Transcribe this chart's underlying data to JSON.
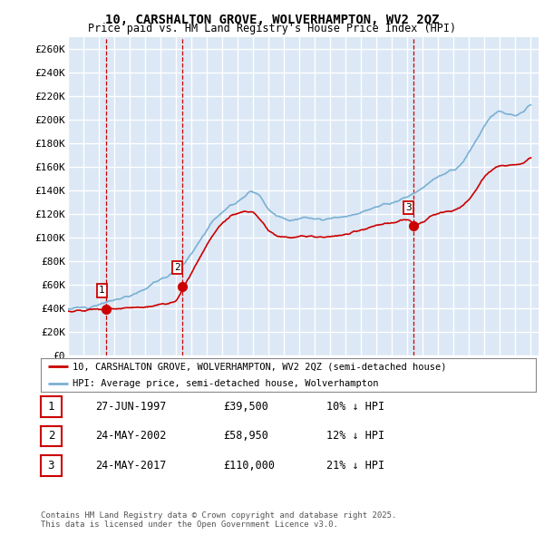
{
  "title": "10, CARSHALTON GROVE, WOLVERHAMPTON, WV2 2QZ",
  "subtitle": "Price paid vs. HM Land Registry's House Price Index (HPI)",
  "ylim": [
    0,
    270000
  ],
  "yticks": [
    0,
    20000,
    40000,
    60000,
    80000,
    100000,
    120000,
    140000,
    160000,
    180000,
    200000,
    220000,
    240000,
    260000
  ],
  "ytick_labels": [
    "£0",
    "£20K",
    "£40K",
    "£60K",
    "£80K",
    "£100K",
    "£120K",
    "£140K",
    "£160K",
    "£180K",
    "£200K",
    "£220K",
    "£240K",
    "£260K"
  ],
  "background_color": "#dce8f5",
  "grid_color": "#ffffff",
  "purchases": [
    {
      "date": 1997.49,
      "price": 39500,
      "label": "1"
    },
    {
      "date": 2002.39,
      "price": 58950,
      "label": "2"
    },
    {
      "date": 2017.39,
      "price": 110000,
      "label": "3"
    }
  ],
  "purchase_vline_color": "#cc0000",
  "purchase_marker_color": "#cc0000",
  "hpi_line_color": "#7ab0d4",
  "price_line_color": "#cc0000",
  "legend_entry1": "10, CARSHALTON GROVE, WOLVERHAMPTON, WV2 2QZ (semi-detached house)",
  "legend_entry2": "HPI: Average price, semi-detached house, Wolverhampton",
  "table_rows": [
    [
      "1",
      "27-JUN-1997",
      "£39,500",
      "10% ↓ HPI"
    ],
    [
      "2",
      "24-MAY-2002",
      "£58,950",
      "12% ↓ HPI"
    ],
    [
      "3",
      "24-MAY-2017",
      "£110,000",
      "21% ↓ HPI"
    ]
  ],
  "footer": "Contains HM Land Registry data © Crown copyright and database right 2025.\nThis data is licensed under the Open Government Licence v3.0.",
  "hpi_anchors_x": [
    1995,
    1995.5,
    1996,
    1996.5,
    1997,
    1997.5,
    1998,
    1998.5,
    1999,
    1999.5,
    2000,
    2000.5,
    2001,
    2001.5,
    2002,
    2002.5,
    2003,
    2003.5,
    2004,
    2004.5,
    2005,
    2005.5,
    2006,
    2006.5,
    2007,
    2007.25,
    2007.5,
    2007.75,
    2008,
    2008.5,
    2009,
    2009.5,
    2010,
    2010.5,
    2011,
    2011.5,
    2012,
    2012.5,
    2013,
    2013.5,
    2014,
    2014.5,
    2015,
    2015.5,
    2016,
    2016.5,
    2017,
    2017.5,
    2018,
    2018.5,
    2019,
    2019.5,
    2020,
    2020.5,
    2021,
    2021.5,
    2022,
    2022.5,
    2023,
    2023.5,
    2024,
    2024.5,
    2025
  ],
  "hpi_anchors_y": [
    40000,
    40500,
    41000,
    42000,
    43500,
    45500,
    47000,
    49000,
    51000,
    54000,
    57000,
    61000,
    65000,
    68000,
    72000,
    78000,
    87000,
    97000,
    107000,
    117000,
    122000,
    127000,
    131000,
    136000,
    140000,
    138000,
    135000,
    130000,
    124000,
    119000,
    116000,
    115000,
    116000,
    117000,
    116000,
    115000,
    116000,
    117000,
    118000,
    120000,
    122000,
    124000,
    126000,
    128000,
    130000,
    132000,
    135000,
    138000,
    143000,
    148000,
    152000,
    155000,
    157000,
    162000,
    173000,
    183000,
    195000,
    205000,
    208000,
    205000,
    203000,
    207000,
    215000
  ],
  "price_anchors_x": [
    1995,
    1995.5,
    1996,
    1996.5,
    1997,
    1997.5,
    1998,
    1998.5,
    1999,
    1999.5,
    2000,
    2000.5,
    2001,
    2001.5,
    2002,
    2002.5,
    2003,
    2003.5,
    2004,
    2004.5,
    2005,
    2005.5,
    2006,
    2006.5,
    2007,
    2007.25,
    2007.5,
    2007.75,
    2008,
    2008.5,
    2009,
    2009.5,
    2010,
    2010.5,
    2011,
    2011.5,
    2012,
    2012.5,
    2013,
    2013.5,
    2014,
    2014.5,
    2015,
    2015.5,
    2016,
    2016.5,
    2017,
    2017.5,
    2018,
    2018.5,
    2019,
    2019.5,
    2020,
    2020.5,
    2021,
    2021.5,
    2022,
    2022.5,
    2023,
    2023.5,
    2024,
    2024.5,
    2025
  ],
  "price_anchors_y": [
    38000,
    38200,
    38500,
    39000,
    39200,
    39500,
    39800,
    40200,
    40500,
    41000,
    41500,
    42000,
    43000,
    44000,
    46000,
    59000,
    70000,
    82000,
    94000,
    104000,
    112000,
    118000,
    121000,
    122000,
    122000,
    119000,
    115000,
    110000,
    106000,
    102000,
    100000,
    100000,
    101000,
    102000,
    101000,
    100500,
    101000,
    102000,
    103000,
    105000,
    107000,
    109000,
    110000,
    112000,
    113000,
    115000,
    116000,
    110000,
    113000,
    118000,
    121000,
    122000,
    123000,
    126000,
    133000,
    142000,
    152000,
    158000,
    162000,
    162000,
    162000,
    163000,
    168000
  ]
}
